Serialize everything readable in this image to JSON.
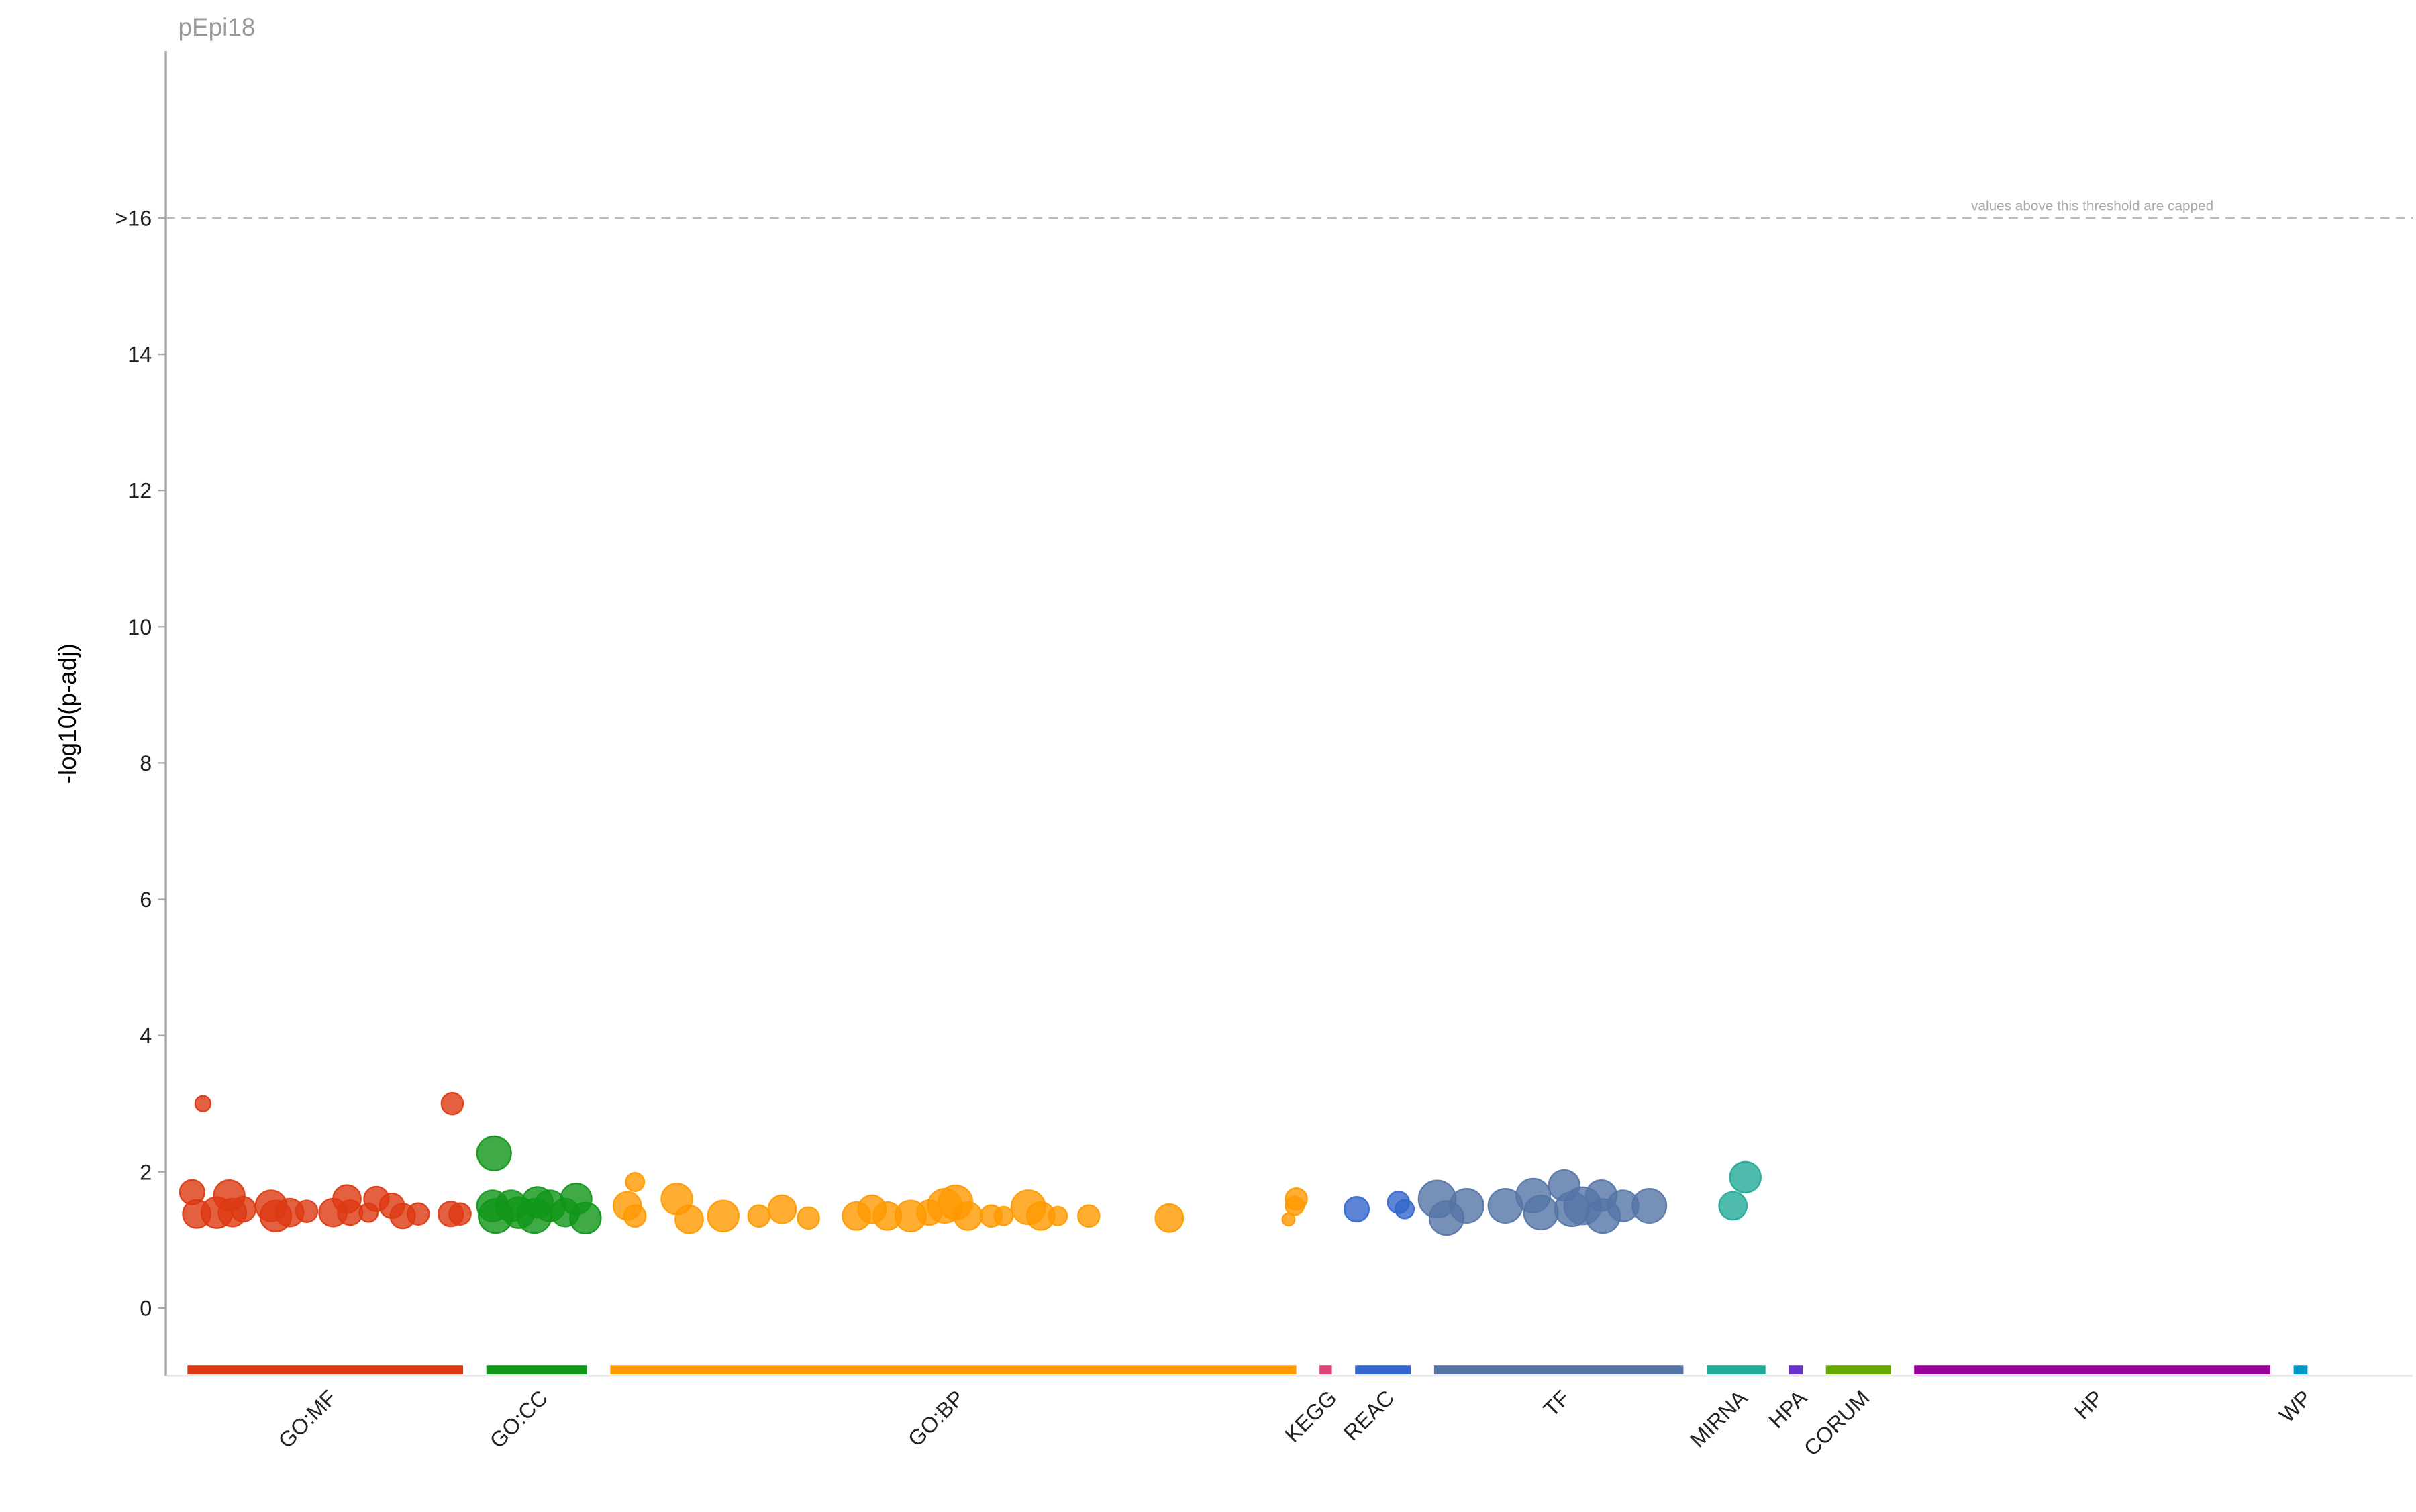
{
  "chart_data": {
    "type": "scatter",
    "title": "pEpi18",
    "y_label": "-log10(p-adj)",
    "threshold": 16,
    "threshold_label": "values above this threshold are capped",
    "xlim": [
      0,
      1451
    ],
    "ylim": [
      -1,
      18.45
    ],
    "yticks": [
      0,
      2,
      4,
      6,
      8,
      10,
      12,
      14,
      {
        "value": 16,
        "label": ">16"
      }
    ],
    "series": [
      {
        "name": "GO:MF",
        "color": "#dc3912",
        "range": [
          14,
          192
        ],
        "x": [
          17,
          24,
          20,
          33,
          41,
          43,
          50,
          68,
          71,
          80,
          91,
          108,
          117,
          119,
          131,
          136,
          146,
          153,
          163,
          185,
          184,
          190
        ],
        "values": [
          1.7,
          3.0,
          1.38,
          1.4,
          1.65,
          1.4,
          1.45,
          1.5,
          1.35,
          1.4,
          1.42,
          1.4,
          1.6,
          1.4,
          1.4,
          1.6,
          1.5,
          1.35,
          1.38,
          3.0,
          1.38,
          1.38
        ],
        "sizes": [
          8,
          5,
          9,
          10,
          10,
          9,
          8,
          10,
          10,
          9,
          7,
          9,
          9,
          8,
          6,
          8,
          8,
          8,
          7,
          7,
          8,
          7
        ]
      },
      {
        "name": "GO:CC",
        "color": "#109618",
        "range": [
          207,
          272
        ],
        "x": [
          212,
          211,
          213,
          223,
          228,
          238,
          240,
          248,
          258,
          265,
          271
        ],
        "values": [
          2.27,
          1.5,
          1.35,
          1.5,
          1.4,
          1.35,
          1.55,
          1.5,
          1.4,
          1.6,
          1.32
        ],
        "sizes": [
          11,
          10,
          11,
          10,
          10,
          11,
          10,
          10,
          9,
          10,
          10
        ]
      },
      {
        "name": "GO:BP",
        "color": "#ff9900",
        "range": [
          287,
          730
        ],
        "x": [
          298,
          303,
          303,
          330,
          338,
          360,
          383,
          398,
          415,
          446,
          456,
          466,
          481,
          493,
          503,
          510,
          518,
          533,
          541,
          557,
          565,
          576,
          596,
          648,
          730,
          729,
          725
        ],
        "values": [
          1.5,
          1.85,
          1.35,
          1.6,
          1.3,
          1.35,
          1.35,
          1.45,
          1.32,
          1.35,
          1.45,
          1.35,
          1.35,
          1.4,
          1.5,
          1.55,
          1.35,
          1.35,
          1.35,
          1.48,
          1.35,
          1.35,
          1.35,
          1.32,
          1.6,
          1.5,
          1.3
        ],
        "sizes": [
          9,
          6,
          7,
          10,
          9,
          10,
          7,
          9,
          7,
          9,
          9,
          9,
          10,
          8,
          11,
          11,
          9,
          7,
          6,
          11,
          9,
          6,
          7,
          9,
          7,
          6,
          4
        ]
      },
      {
        "name": "KEGG",
        "color": "#dd4477",
        "range": [
          745,
          753
        ],
        "x": [],
        "values": [],
        "sizes": []
      },
      {
        "name": "REAC",
        "color": "#3366cc",
        "range": [
          768,
          804
        ],
        "x": [
          769,
          796,
          800
        ],
        "values": [
          1.45,
          1.55,
          1.45
        ],
        "sizes": [
          8,
          7,
          6
        ]
      },
      {
        "name": "TF",
        "color": "#5574a6",
        "range": [
          819,
          980
        ],
        "x": [
          821,
          827,
          840,
          865,
          883,
          888,
          903,
          908,
          915,
          927,
          928,
          941,
          958
        ],
        "values": [
          1.6,
          1.32,
          1.5,
          1.5,
          1.65,
          1.4,
          1.8,
          1.45,
          1.5,
          1.65,
          1.35,
          1.5,
          1.5
        ],
        "sizes": [
          12,
          11,
          11,
          11,
          11,
          11,
          10,
          11,
          12,
          10,
          11,
          10,
          11
        ]
      },
      {
        "name": "MIRNA",
        "color": "#22aa99",
        "range": [
          995,
          1033
        ],
        "x": [
          1012,
          1020
        ],
        "values": [
          1.5,
          1.92
        ],
        "sizes": [
          9,
          10
        ]
      },
      {
        "name": "HPA",
        "color": "#6633cc",
        "range": [
          1048,
          1057
        ],
        "x": [],
        "values": [],
        "sizes": []
      },
      {
        "name": "CORUM",
        "color": "#66aa00",
        "range": [
          1072,
          1114
        ],
        "x": [],
        "values": [],
        "sizes": []
      },
      {
        "name": "HP",
        "color": "#990099",
        "range": [
          1129,
          1359
        ],
        "x": [],
        "values": [],
        "sizes": []
      },
      {
        "name": "WP",
        "color": "#0099c6",
        "range": [
          1374,
          1383
        ],
        "x": [],
        "values": [],
        "sizes": []
      }
    ]
  }
}
